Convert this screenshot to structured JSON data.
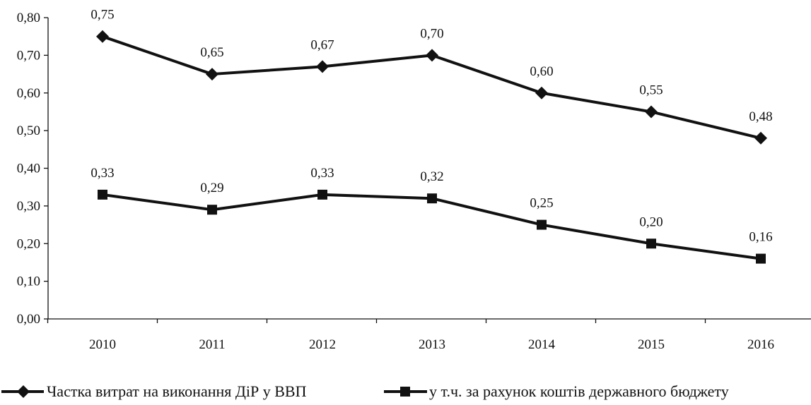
{
  "chart_data": {
    "type": "line",
    "title": "",
    "xlabel": "",
    "ylabel": "",
    "categories": [
      "2010",
      "2011",
      "2012",
      "2013",
      "2014",
      "2015",
      "2016"
    ],
    "ylim": [
      0,
      0.8
    ],
    "yticks": [
      "0,00",
      "0,10",
      "0,20",
      "0,30",
      "0,40",
      "0,50",
      "0,60",
      "0,70",
      "0,80"
    ],
    "grid": false,
    "legend_position": "bottom",
    "series": [
      {
        "name": "Частка витрат на виконання ДіР у ВВП",
        "marker": "diamond",
        "color": "#111111",
        "values": [
          0.75,
          0.65,
          0.67,
          0.7,
          0.6,
          0.55,
          0.48
        ],
        "labels": [
          "0,75",
          "0,65",
          "0,67",
          "0,70",
          "0,60",
          "0,55",
          "0,48"
        ]
      },
      {
        "name": "у т.ч. за рахунок коштів державного бюджету",
        "marker": "square",
        "color": "#111111",
        "values": [
          0.33,
          0.29,
          0.33,
          0.32,
          0.25,
          0.2,
          0.16
        ],
        "labels": [
          "0,33",
          "0,29",
          "0,33",
          "0,32",
          "0,25",
          "0,20",
          "0,16"
        ]
      }
    ]
  }
}
